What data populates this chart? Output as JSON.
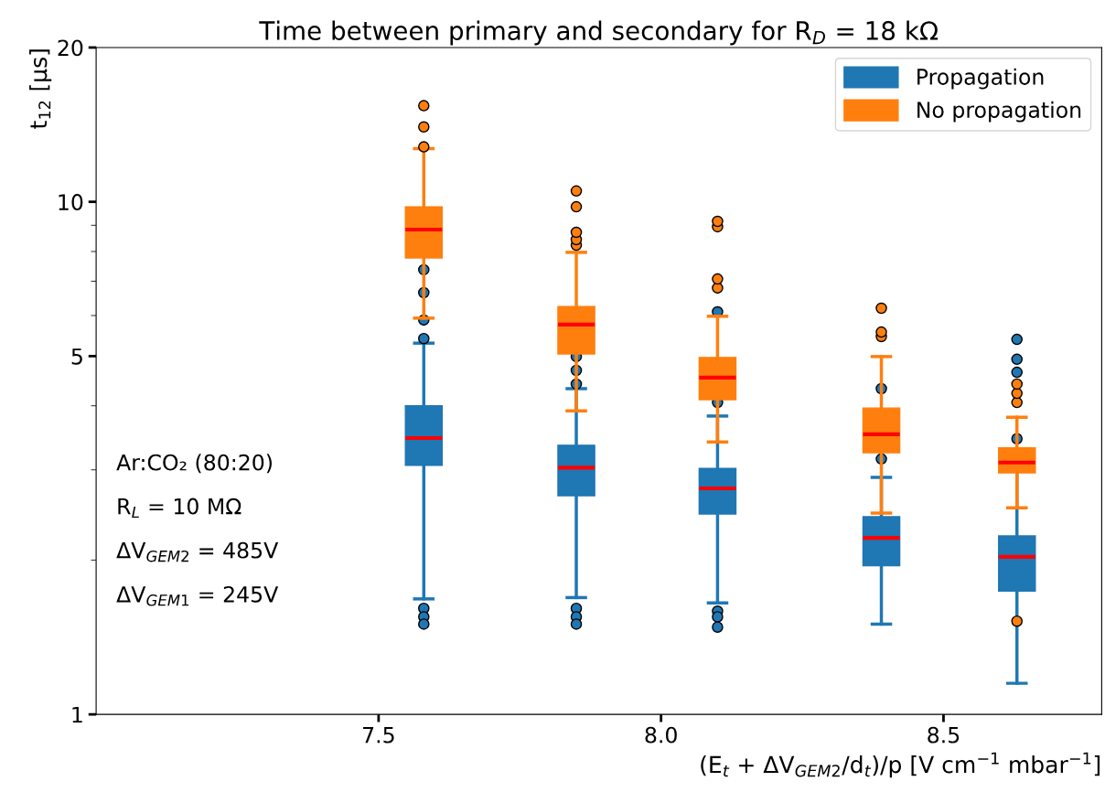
{
  "chart_data": {
    "type": "box",
    "title": "Time between primary and secondary for R$_{D}$ = 18 kΩ",
    "xlabel": "(E$_{t}$ + ΔV$_{GEM2}$/d$_{t}$)/p [V cm$^{−1}$ mbar$^{−1}$]",
    "ylabel": "t$_{12}$ [μs]",
    "x": [
      7.58,
      7.85,
      8.1,
      8.39,
      8.63
    ],
    "xlim": [
      7.0,
      8.78
    ],
    "xticks": [
      {
        "value": 7.5,
        "label": "7.5"
      },
      {
        "value": 8.0,
        "label": "8.0"
      },
      {
        "value": 8.5,
        "label": "8.5"
      }
    ],
    "ylim": [
      1,
      20
    ],
    "yticks": [
      1,
      5,
      10,
      20
    ],
    "log": true,
    "grid": false,
    "legend": "top right",
    "marker": "circle",
    "series": [
      {
        "name": "Propagation",
        "color": "#1f77b4",
        "boxes": [
          {
            "low": 1.68,
            "q1": 3.06,
            "median": 3.46,
            "q3": 4.0,
            "high": 5.3,
            "outliers": [
              1.61,
              1.55,
              1.5,
              5.41,
              5.88,
              6.65,
              7.37
            ]
          },
          {
            "low": 1.69,
            "q1": 2.67,
            "median": 3.03,
            "q3": 3.35,
            "high": 4.32,
            "outliers": [
              1.61,
              1.55,
              1.5,
              4.41,
              4.69,
              4.99
            ]
          },
          {
            "low": 1.65,
            "q1": 2.46,
            "median": 2.76,
            "q3": 3.02,
            "high": 3.82,
            "outliers": [
              1.59,
              1.55,
              1.48,
              4.06,
              6.1
            ]
          },
          {
            "low": 1.5,
            "q1": 1.95,
            "median": 2.21,
            "q3": 2.43,
            "high": 2.9,
            "outliers": [
              3.15,
              4.32
            ]
          },
          {
            "low": 1.15,
            "q1": 1.74,
            "median": 2.03,
            "q3": 2.23,
            "high": 3.0,
            "outliers": [
              3.45,
              4.65,
              4.93,
              5.39
            ]
          }
        ]
      },
      {
        "name": "No propagation",
        "color": "#ff7f0e",
        "boxes": [
          {
            "low": 5.93,
            "q1": 7.77,
            "median": 8.83,
            "q3": 9.78,
            "high": 12.7,
            "outliers": [
              12.8,
              14.0,
              15.4
            ]
          },
          {
            "low": 3.91,
            "q1": 5.05,
            "median": 5.76,
            "q3": 6.25,
            "high": 7.97,
            "outliers": [
              8.23,
              8.44,
              8.72,
              9.78,
              10.5
            ]
          },
          {
            "low": 3.4,
            "q1": 4.11,
            "median": 4.54,
            "q3": 4.97,
            "high": 5.98,
            "outliers": [
              6.79,
              7.07,
              8.94,
              9.16
            ]
          },
          {
            "low": 2.47,
            "q1": 3.24,
            "median": 3.52,
            "q3": 3.96,
            "high": 4.99,
            "outliers": [
              5.46,
              5.57,
              6.2
            ]
          },
          {
            "low": 2.53,
            "q1": 2.96,
            "median": 3.1,
            "q3": 3.31,
            "high": 3.8,
            "outliers": [
              1.52,
              4.06,
              4.23,
              4.41
            ]
          }
        ]
      }
    ],
    "annotations": [
      "Ar:CO₂ (80:20)",
      "R$_{L}$ = 10 MΩ",
      "ΔV$_{GEM2}$ = 485V",
      "ΔV$_{GEM1}$ = 245V"
    ]
  }
}
